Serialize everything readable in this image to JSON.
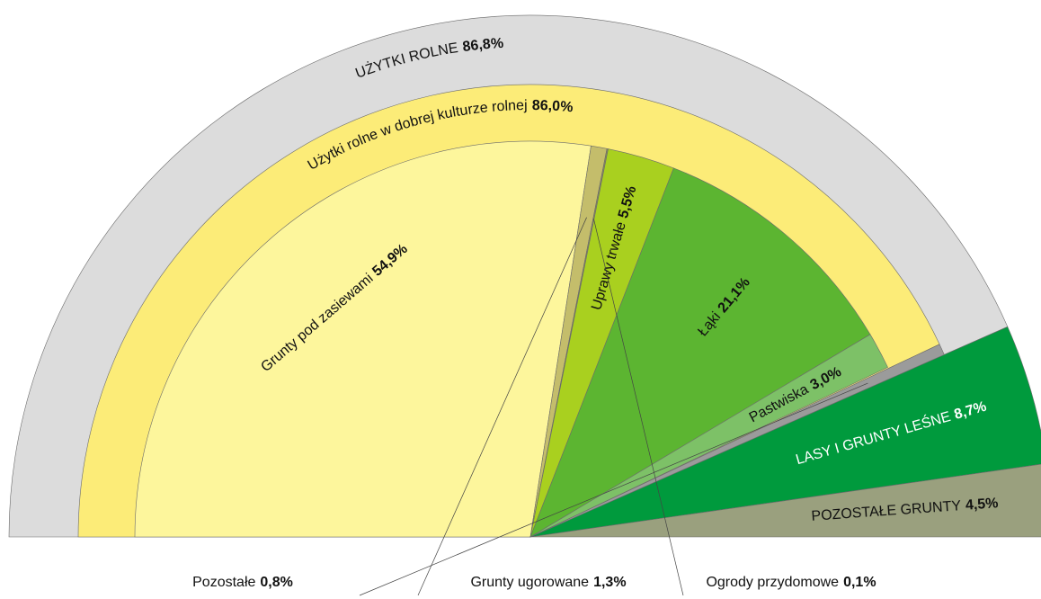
{
  "chart_data": {
    "type": "half-pie",
    "rings": [
      [
        {
          "name": "UŻYTKI ROLNE",
          "value": 86.8,
          "value_label": "86,8%",
          "color": "#dcdcdc"
        },
        {
          "name": "LASY I GRUNTY LEŚNE",
          "value": 8.7,
          "value_label": "8,7%",
          "color": "#009a3d"
        },
        {
          "name": "POZOSTAŁE GRUNTY",
          "value": 4.5,
          "value_label": "4,5%",
          "color": "#9aa07e"
        }
      ],
      [
        {
          "name": "Użytki rolne w dobrej kulturze rolnej",
          "value": 86.0,
          "value_label": "86,0%",
          "color": "#fcec78"
        },
        {
          "name": "Pozostałe",
          "value": 0.8,
          "value_label": "0,8%",
          "color": "#9b9b9b"
        }
      ],
      [
        {
          "name": "Grunty pod zasiewami",
          "value": 54.9,
          "value_label": "54,9%",
          "color": "#fdf69c"
        },
        {
          "name": "Grunty ugorowane",
          "value": 1.3,
          "value_label": "1,3%",
          "color": "#c4bd6b"
        },
        {
          "name": "Ogrody przydomowe",
          "value": 0.1,
          "value_label": "0,1%",
          "color": "#8a8a5a"
        },
        {
          "name": "Uprawy trwałe",
          "value": 5.5,
          "value_label": "5,5%",
          "color": "#a9d01f"
        },
        {
          "name": "Łąki",
          "value": 21.1,
          "value_label": "21,1%",
          "color": "#5cb531"
        },
        {
          "name": "Pastwiska",
          "value": 3.0,
          "value_label": "3,0%",
          "color": "#7dc167"
        }
      ]
    ]
  }
}
